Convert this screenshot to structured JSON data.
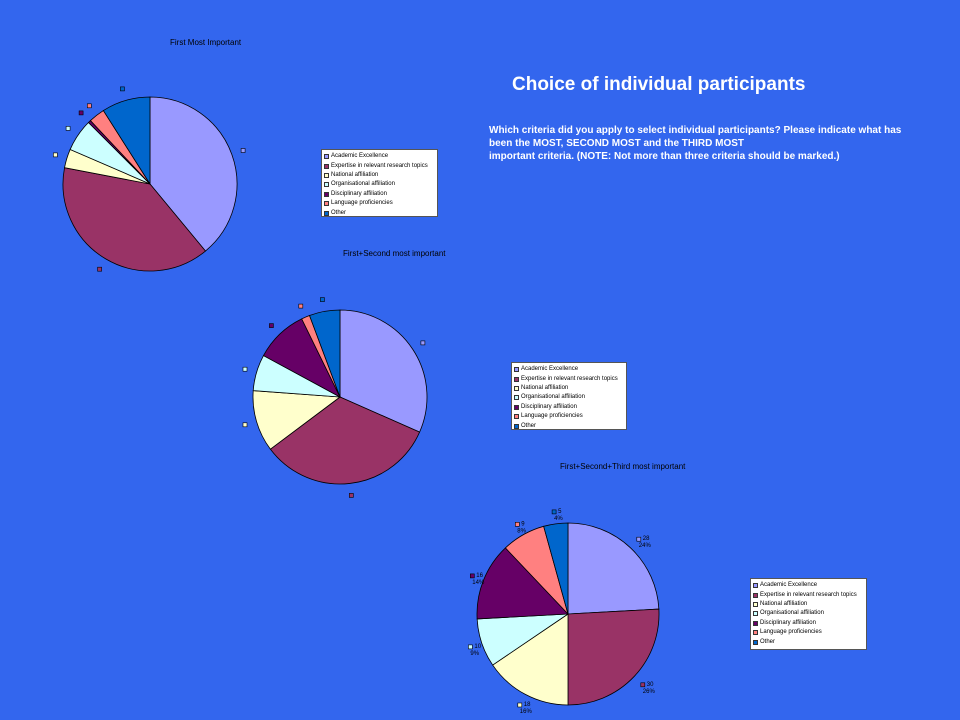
{
  "slide": {
    "title": "Choice of individual participants",
    "question_lines": [
      "Which criteria did you apply to select individual participants? Please indicate what has",
      "been the MOST, SECOND MOST and the THIRD MOST",
      "important criteria. (NOTE: Not more than three criteria should be marked.)"
    ]
  },
  "colors": {
    "background": "#3366EE",
    "slices": [
      "#9999FF",
      "#993366",
      "#FFFFCC",
      "#CCFFFF",
      "#660066",
      "#FF8080",
      "#0066CC"
    ]
  },
  "chart_data": [
    {
      "type": "pie",
      "title": "First Most Important",
      "categories": [
        "Academic Excellence",
        "Expertise in relevant research topics",
        "National affiliation",
        "Organisational affiliation",
        "Disciplinary affiliation",
        "Language proficiencies",
        "Other"
      ],
      "legend": [
        "Academic Excellence",
        "Expertise in relevant research topics",
        "National affiliation",
        "Organisational affiliation",
        "Disciplinary affiliation",
        "Language proficiencies",
        "Other"
      ],
      "values": [
        39,
        39,
        3.5,
        6,
        0.5,
        3,
        9
      ],
      "legend_position": "right"
    },
    {
      "type": "pie",
      "title": "First+Second most important",
      "categories": [
        "Academic Excellence",
        "Expertise in relevant research topics",
        "National affiliation",
        "Organisational affiliation",
        "Disciplinary affiliation",
        "Language proficiencies",
        "Other"
      ],
      "legend": [
        "Academic Excellence",
        "Expertise in relevant research topics",
        "National affiliation",
        "Organisational affiliation",
        "Disciplinary affiliation",
        "Language proficiencies",
        "Other"
      ],
      "values": [
        30.5,
        32,
        11,
        6.5,
        9.5,
        1.5,
        5.5
      ],
      "legend_position": "right"
    },
    {
      "type": "pie",
      "title": "First+Second+Third most important",
      "categories": [
        "Academic Excellence",
        "Expertise in relevant research topics",
        "National affiliation",
        "Organisational affiliation",
        "Disciplinary affiliation",
        "Language proficiencies",
        "Other"
      ],
      "legend": [
        "Academic Excellence",
        "Expertise in relevant research topics",
        "National affiliation",
        "Organisational affiliation",
        "Disciplinary affiliation",
        "Language proficiencies",
        "Other"
      ],
      "values": [
        28,
        30,
        18,
        10,
        16,
        9,
        5
      ],
      "data_labels": [
        {
          "count": "28",
          "percent": "24%"
        },
        {
          "count": "30",
          "percent": "26%"
        },
        {
          "count": "18",
          "percent": "16%"
        },
        {
          "count": "10",
          "percent": "9%"
        },
        {
          "count": "16",
          "percent": "14%"
        },
        {
          "count": "9",
          "percent": "8%"
        },
        {
          "count": "5",
          "percent": "4%"
        }
      ],
      "legend_position": "right"
    }
  ]
}
